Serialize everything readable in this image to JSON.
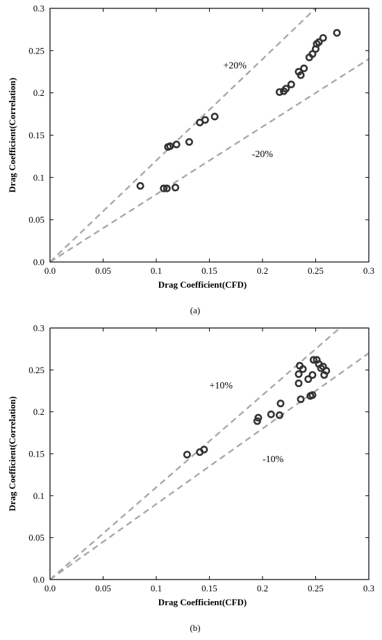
{
  "chart_data": [
    {
      "type": "scatter",
      "caption": "(a)",
      "xlabel": "Drag Coefficient(CFD)",
      "ylabel": "Drag Coefficient(Correlation)",
      "xlim": [
        0,
        0.3
      ],
      "ylim": [
        0,
        0.3
      ],
      "xticks": [
        "0.0",
        "0.05",
        "0.1",
        "0.15",
        "0.2",
        "0.25",
        "0.3"
      ],
      "yticks": [
        "0.0",
        "0.05",
        "0.1",
        "0.15",
        "0.2",
        "0.25",
        "0.3"
      ],
      "grid": false,
      "reference_lines": [
        {
          "label": "+20%",
          "slope": 1.2,
          "label_pos": [
            0.163,
            0.229
          ]
        },
        {
          "label": "-20%",
          "slope": 0.8,
          "label_pos": [
            0.19,
            0.124
          ]
        }
      ],
      "series": [
        {
          "points": [
            [
              0.085,
              0.09
            ],
            [
              0.107,
              0.087
            ],
            [
              0.11,
              0.087
            ],
            [
              0.118,
              0.088
            ],
            [
              0.111,
              0.136
            ],
            [
              0.113,
              0.137
            ],
            [
              0.119,
              0.139
            ],
            [
              0.131,
              0.142
            ],
            [
              0.141,
              0.165
            ],
            [
              0.146,
              0.168
            ],
            [
              0.155,
              0.172
            ],
            [
              0.216,
              0.201
            ],
            [
              0.22,
              0.202
            ],
            [
              0.222,
              0.205
            ],
            [
              0.227,
              0.21
            ],
            [
              0.234,
              0.225
            ],
            [
              0.236,
              0.221
            ],
            [
              0.239,
              0.229
            ],
            [
              0.244,
              0.242
            ],
            [
              0.247,
              0.246
            ],
            [
              0.25,
              0.252
            ],
            [
              0.251,
              0.258
            ],
            [
              0.253,
              0.26
            ],
            [
              0.257,
              0.265
            ],
            [
              0.27,
              0.271
            ]
          ]
        }
      ]
    },
    {
      "type": "scatter",
      "caption": "(b)",
      "xlabel": "Drag Coefficient(CFD)",
      "ylabel": "Drag Coefficient(Correlation)",
      "xlim": [
        0,
        0.3
      ],
      "ylim": [
        0,
        0.3
      ],
      "xticks": [
        "0.0",
        "0.05",
        "0.1",
        "0.15",
        "0.2",
        "0.25",
        "0.3"
      ],
      "yticks": [
        "0.0",
        "0.05",
        "0.1",
        "0.15",
        "0.2",
        "0.25",
        "0.3"
      ],
      "grid": false,
      "reference_lines": [
        {
          "label": "+10%",
          "slope": 1.1,
          "label_pos": [
            0.15,
            0.228
          ]
        },
        {
          "label": "-10%",
          "slope": 0.9,
          "label_pos": [
            0.2,
            0.14
          ]
        }
      ],
      "series": [
        {
          "points": [
            [
              0.129,
              0.149
            ],
            [
              0.141,
              0.152
            ],
            [
              0.145,
              0.155
            ],
            [
              0.195,
              0.189
            ],
            [
              0.196,
              0.193
            ],
            [
              0.208,
              0.197
            ],
            [
              0.216,
              0.196
            ],
            [
              0.217,
              0.21
            ],
            [
              0.234,
              0.234
            ],
            [
              0.234,
              0.245
            ],
            [
              0.235,
              0.255
            ],
            [
              0.236,
              0.215
            ],
            [
              0.238,
              0.251
            ],
            [
              0.243,
              0.239
            ],
            [
              0.245,
              0.219
            ],
            [
              0.247,
              0.22
            ],
            [
              0.247,
              0.244
            ],
            [
              0.248,
              0.262
            ],
            [
              0.251,
              0.262
            ],
            [
              0.253,
              0.257
            ],
            [
              0.255,
              0.252
            ],
            [
              0.257,
              0.254
            ],
            [
              0.258,
              0.244
            ],
            [
              0.26,
              0.249
            ]
          ]
        }
      ]
    }
  ]
}
